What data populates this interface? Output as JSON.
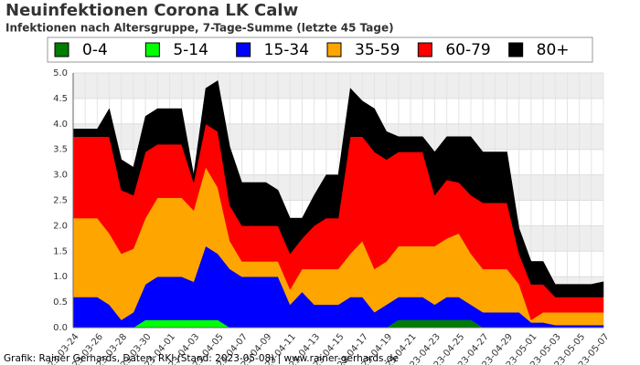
{
  "chart_data": {
    "type": "stacked_area",
    "title": "Neuinfektionen Corona LK Calw",
    "subtitle": "Infektionen nach Altersgruppe, 7-Tage-Summe (letzte 45 Tage)",
    "credit": "Grafik: Rainer Gerhards, Daten: RKI (Stand: 2023-05-08) | www.rainer-gerhards.de",
    "categories": [
      "2023-03-24",
      null,
      "2023-03-26",
      null,
      "2023-03-28",
      null,
      "2023-03-30",
      null,
      "2023-04-01",
      null,
      "2023-04-03",
      null,
      "2023-04-05",
      null,
      "2023-04-07",
      null,
      "2023-04-09",
      null,
      "2023-04-11",
      null,
      "2023-04-13",
      null,
      "2023-04-15",
      null,
      "2023-04-17",
      null,
      "2023-04-19",
      null,
      "2023-04-21",
      null,
      "2023-04-23",
      null,
      "2023-04-25",
      null,
      "2023-04-27",
      null,
      "2023-04-29",
      null,
      "2023-05-01",
      null,
      "2023-05-03",
      null,
      "2023-05-05",
      null,
      "2023-05-07"
    ],
    "series": [
      {
        "name": "0-4",
        "color": "#007c00",
        "values": [
          0,
          0,
          0,
          0,
          0,
          0,
          0,
          0,
          0,
          0,
          0,
          0,
          0,
          0,
          0,
          0,
          0,
          0,
          0,
          0,
          0,
          0,
          0,
          0,
          0,
          0,
          0,
          0.15,
          0.15,
          0.15,
          0.15,
          0.15,
          0.15,
          0.15,
          0,
          0,
          0,
          0,
          0,
          0,
          0,
          0,
          0,
          0,
          0
        ]
      },
      {
        "name": "5-14",
        "color": "#00ff00",
        "values": [
          0,
          0,
          0,
          0,
          0,
          0,
          0.15,
          0.15,
          0.15,
          0.15,
          0.15,
          0.15,
          0.15,
          0,
          0,
          0,
          0,
          0,
          0,
          0,
          0,
          0,
          0,
          0,
          0,
          0,
          0,
          0,
          0,
          0,
          0,
          0,
          0,
          0,
          0,
          0,
          0,
          0,
          0,
          0,
          0,
          0,
          0,
          0,
          0
        ]
      },
      {
        "name": "15-34",
        "color": "#0000ff",
        "values": [
          0.6,
          0.6,
          0.6,
          0.45,
          0.15,
          0.3,
          0.7,
          0.85,
          0.85,
          0.85,
          0.75,
          1.45,
          1.3,
          1.15,
          1.0,
          1.0,
          1.0,
          1.0,
          0.45,
          0.7,
          0.45,
          0.45,
          0.45,
          0.6,
          0.6,
          0.3,
          0.45,
          0.45,
          0.45,
          0.45,
          0.3,
          0.45,
          0.45,
          0.3,
          0.3,
          0.3,
          0.3,
          0.3,
          0.1,
          0.1,
          0.05,
          0.05,
          0.05,
          0.05,
          0.05
        ]
      },
      {
        "name": "35-59",
        "color": "#ffa500",
        "values": [
          1.55,
          1.55,
          1.55,
          1.4,
          1.3,
          1.25,
          1.3,
          1.55,
          1.55,
          1.55,
          1.4,
          1.55,
          1.3,
          0.55,
          0.3,
          0.3,
          0.3,
          0.3,
          0.3,
          0.45,
          0.7,
          0.7,
          0.7,
          0.85,
          1.1,
          0.85,
          0.85,
          1.0,
          1.0,
          1.0,
          1.15,
          1.15,
          1.25,
          1.0,
          0.85,
          0.85,
          0.85,
          0.55,
          0.05,
          0.2,
          0.25,
          0.25,
          0.25,
          0.25,
          0.25
        ]
      },
      {
        "name": "60-79",
        "color": "#ff0000",
        "values": [
          1.6,
          1.6,
          1.6,
          1.9,
          1.25,
          1.05,
          1.3,
          1.05,
          1.05,
          1.05,
          0.55,
          0.85,
          1.1,
          0.7,
          0.7,
          0.7,
          0.7,
          0.7,
          0.7,
          0.6,
          0.85,
          1.0,
          1.0,
          2.3,
          2.05,
          2.3,
          2.0,
          1.85,
          1.85,
          1.85,
          1.0,
          1.15,
          1.0,
          1.15,
          1.3,
          1.3,
          1.3,
          0.6,
          0.7,
          0.55,
          0.3,
          0.3,
          0.3,
          0.3,
          0.3
        ]
      },
      {
        "name": "80+",
        "color": "#000000",
        "values": [
          0.15,
          0.15,
          0.15,
          0.55,
          0.6,
          0.55,
          0.7,
          0.7,
          0.7,
          0.7,
          0.15,
          0.7,
          1.0,
          1.15,
          0.85,
          0.85,
          0.85,
          0.7,
          0.7,
          0.4,
          0.6,
          0.85,
          0.85,
          0.95,
          0.7,
          0.85,
          0.55,
          0.3,
          0.3,
          0.3,
          0.85,
          0.85,
          0.9,
          1.15,
          1.0,
          1.0,
          1.0,
          0.5,
          0.45,
          0.45,
          0.25,
          0.25,
          0.25,
          0.25,
          0.3
        ]
      }
    ],
    "ylim": [
      0,
      5
    ],
    "yticks": [
      {
        "value": 0,
        "label": "0.0"
      },
      0.5,
      {
        "value": 1,
        "label": "1.0"
      },
      1.5,
      {
        "value": 2,
        "label": "2.0"
      },
      2.5,
      {
        "value": 3,
        "label": "3.0"
      },
      3.5,
      {
        "value": 4,
        "label": "4.0"
      },
      4.5,
      {
        "value": 5,
        "label": "5.0"
      }
    ],
    "grid": true
  }
}
